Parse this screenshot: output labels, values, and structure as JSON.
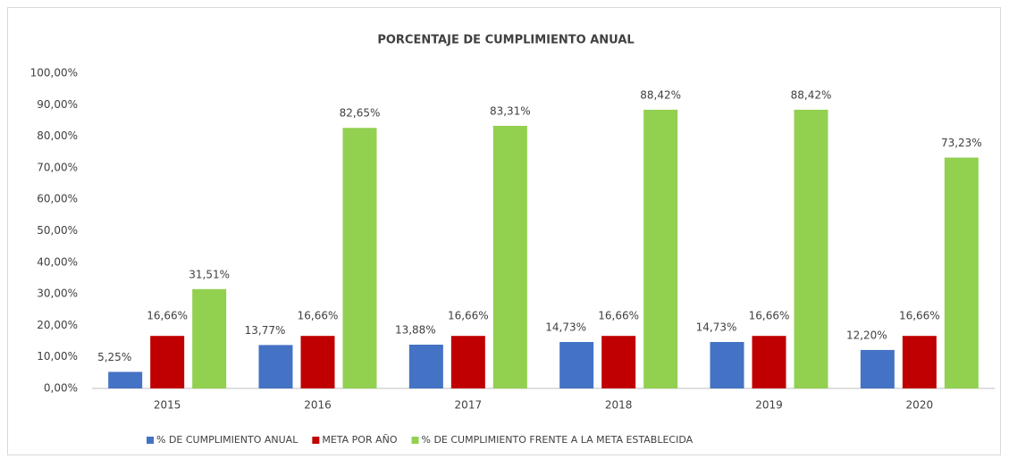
{
  "chart_data": {
    "type": "bar",
    "title": "PORCENTAJE DE CUMPLIMIENTO ANUAL",
    "categories": [
      "2015",
      "2016",
      "2017",
      "2018",
      "2019",
      "2020"
    ],
    "series": [
      {
        "name": "% DE CUMPLIMIENTO ANUAL",
        "color": "#4472c4",
        "values": [
          5.25,
          13.77,
          13.88,
          14.73,
          14.73,
          12.2
        ],
        "value_labels": [
          "5,25%",
          "13,77%",
          "13,88%",
          "14,73%",
          "14,73%",
          "12,20%"
        ]
      },
      {
        "name": "META POR AÑO",
        "color": "#c00000",
        "values": [
          16.66,
          16.66,
          16.66,
          16.66,
          16.66,
          16.66
        ],
        "value_labels": [
          "16,66%",
          "16,66%",
          "16,66%",
          "16,66%",
          "16,66%",
          "16,66%"
        ]
      },
      {
        "name": "% DE CUMPLIMIENTO FRENTE A LA META ESTABLECIDA",
        "color": "#92d050",
        "values": [
          31.51,
          82.65,
          83.31,
          88.42,
          88.42,
          73.23
        ],
        "value_labels": [
          "31,51%",
          "82,65%",
          "83,31%",
          "88,42%",
          "88,42%",
          "73,23%"
        ]
      }
    ],
    "ylim": [
      0,
      100
    ],
    "yticks": [
      {
        "value": 0,
        "label": "0,00%"
      },
      {
        "value": 10,
        "label": "10,00%"
      },
      {
        "value": 20,
        "label": "20,00%"
      },
      {
        "value": 30,
        "label": "30,00%"
      },
      {
        "value": 40,
        "label": "40,00%"
      },
      {
        "value": 50,
        "label": "50,00%"
      },
      {
        "value": 60,
        "label": "60,00%"
      },
      {
        "value": 70,
        "label": "70,00%"
      },
      {
        "value": 80,
        "label": "80,00%"
      },
      {
        "value": 90,
        "label": "90,00%"
      },
      {
        "value": 100,
        "label": "100,00%"
      }
    ],
    "grid": false,
    "legend": "bottom"
  }
}
